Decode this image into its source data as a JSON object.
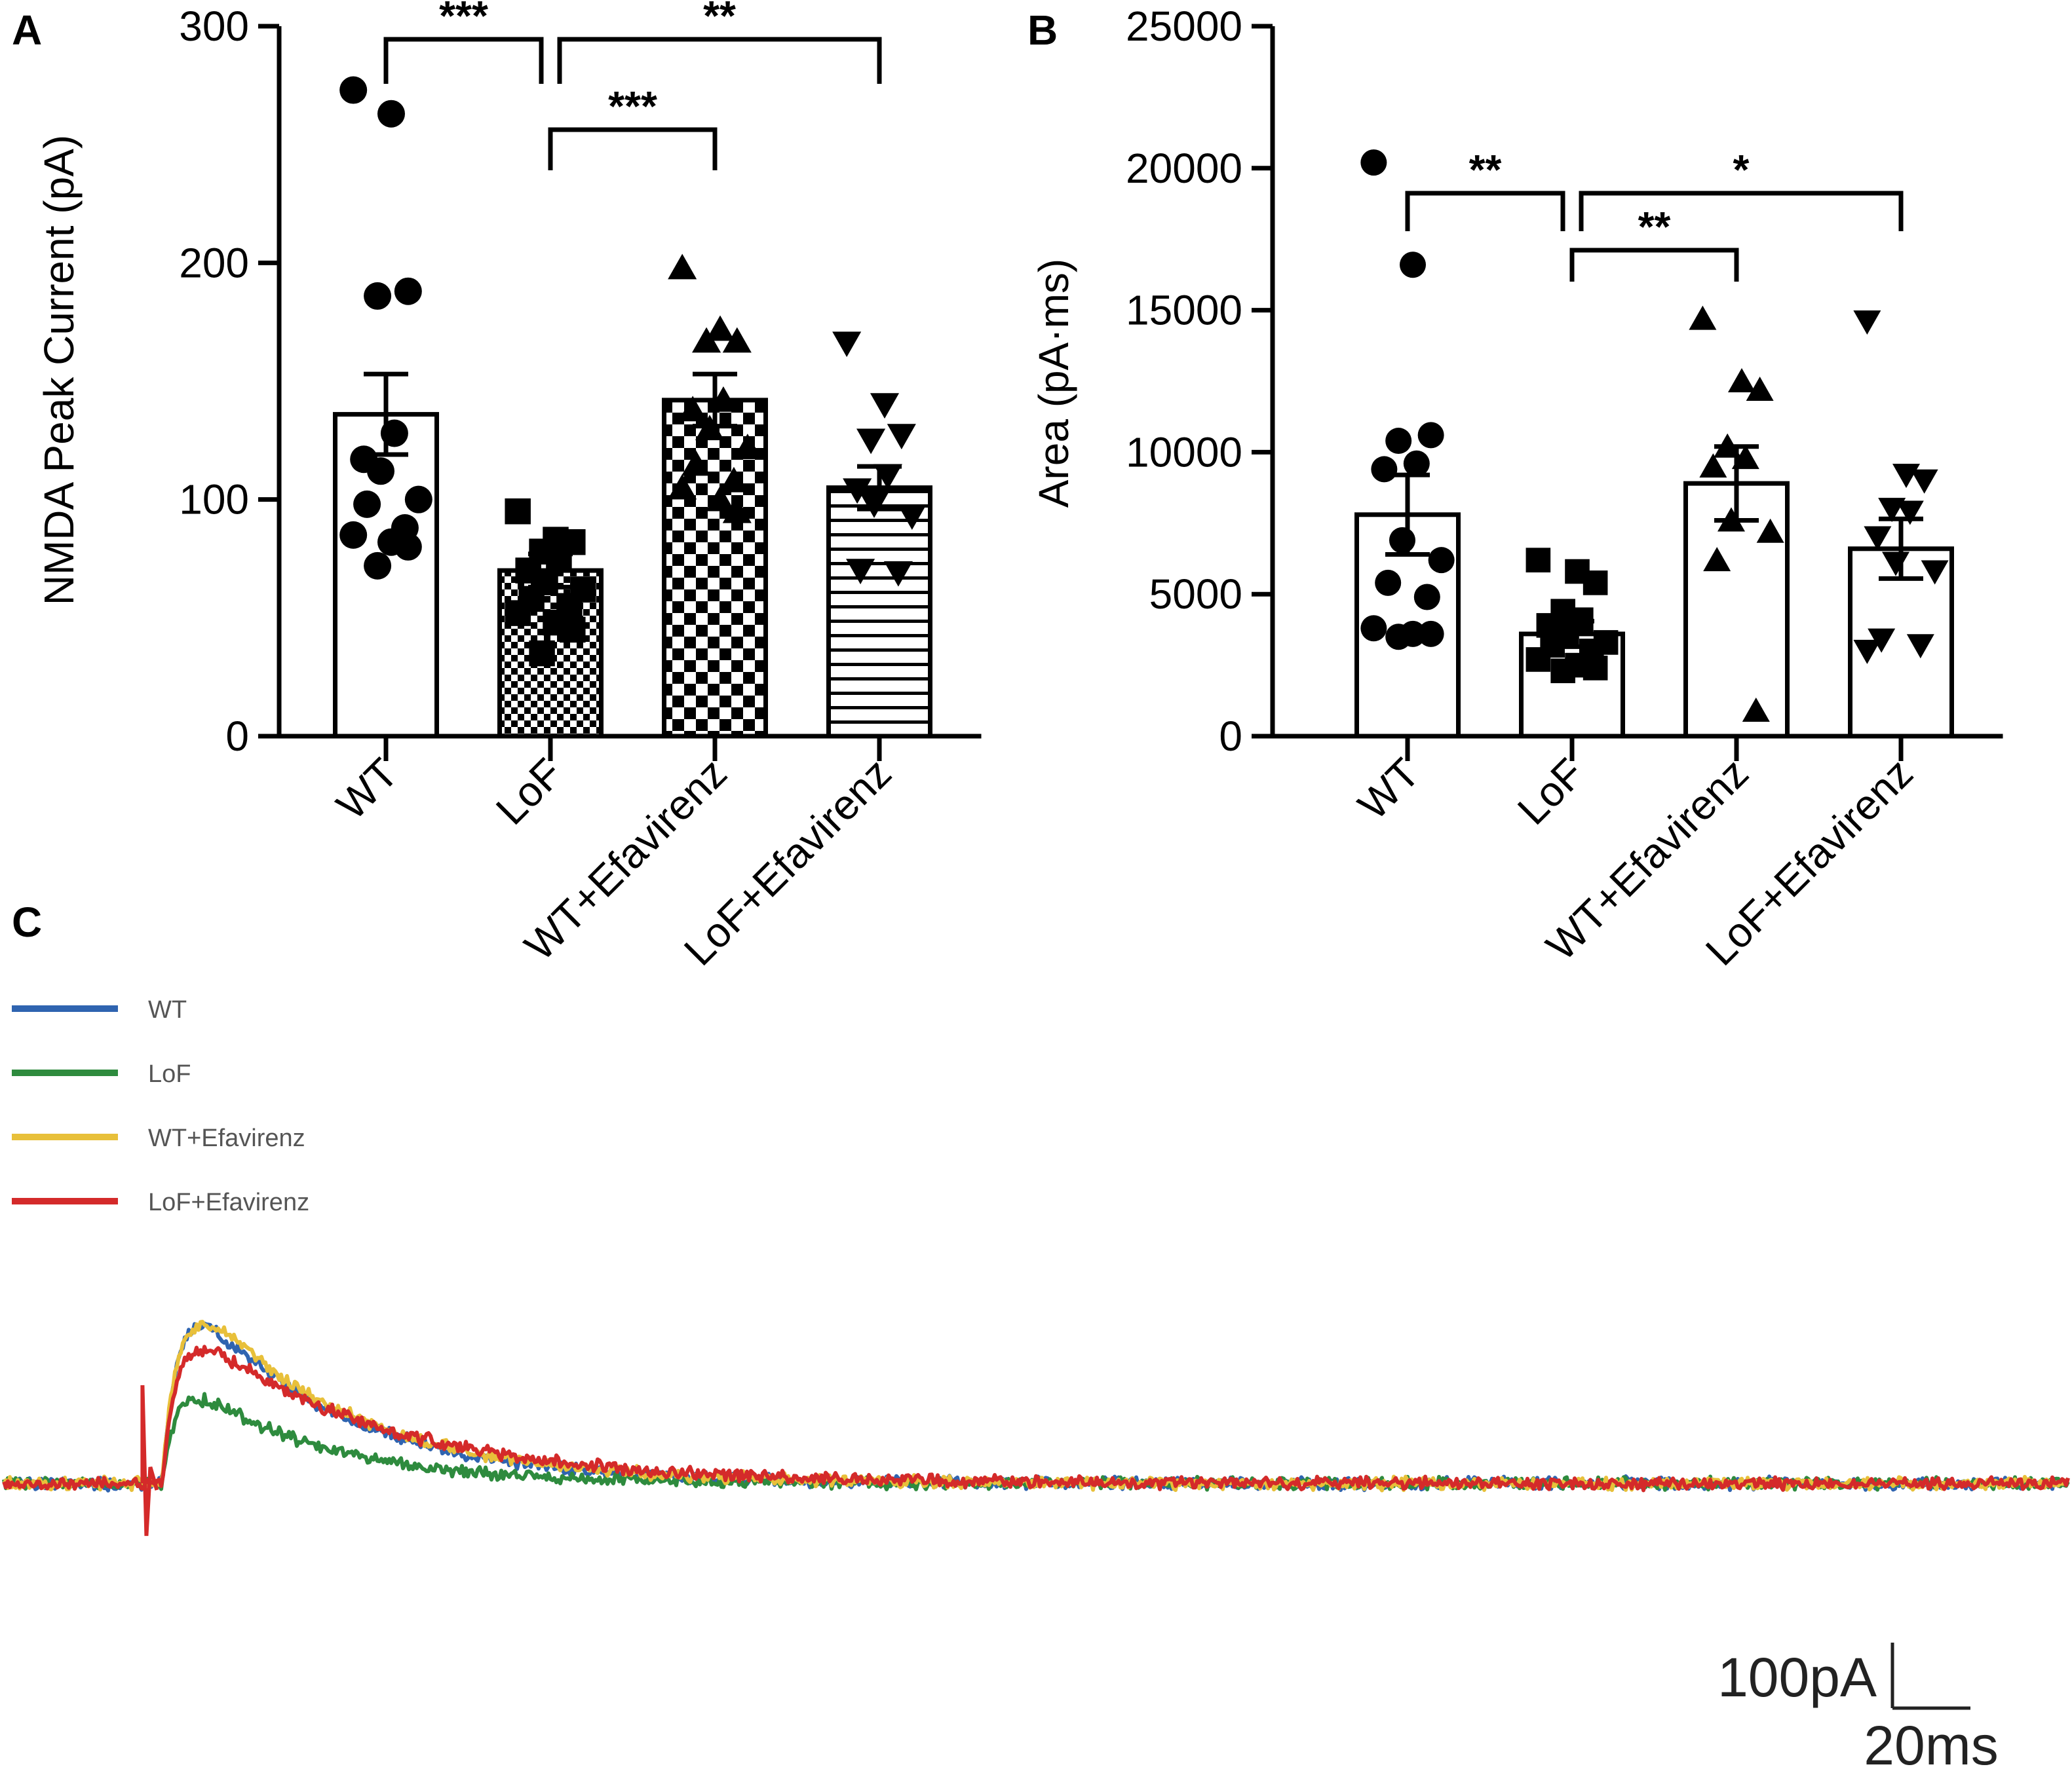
{
  "figure": {
    "panel_labels": [
      "A",
      "B",
      "C"
    ]
  },
  "chart_data": [
    {
      "panel": "A",
      "type": "bar",
      "title": "",
      "xlabel": "",
      "ylabel": "NMDA Peak Current (pA)",
      "categories": [
        "WT",
        "LoF",
        "WT+Efavirenz",
        "LoF+Efavirenz"
      ],
      "values": [
        136,
        70,
        142,
        105
      ],
      "sem": [
        17,
        7,
        11,
        9
      ],
      "fill_patterns": [
        "white",
        "fine-checker",
        "checker",
        "horizontal-stripes"
      ],
      "marker_shapes": [
        "circle",
        "square",
        "triangle-up",
        "triangle-down"
      ],
      "ylim": [
        0,
        300
      ],
      "yticks": [
        0,
        100,
        200,
        300
      ],
      "tick_labels": [
        "0",
        "100",
        "200",
        "300"
      ],
      "points": [
        [
          273,
          263,
          188,
          186,
          128,
          117,
          112,
          100,
          98,
          88,
          85,
          82,
          80,
          72
        ],
        [
          95,
          83,
          82,
          78,
          75,
          70,
          65,
          62,
          58,
          55,
          52,
          48,
          45,
          35
        ],
        [
          198,
          172,
          167,
          167,
          142,
          138,
          130,
          122,
          115,
          108,
          105,
          100,
          95
        ],
        [
          166,
          140,
          127,
          125,
          110,
          104,
          98,
          93,
          70,
          69
        ]
      ],
      "significance": [
        {
          "groups": [
            0,
            1
          ],
          "label": "***"
        },
        {
          "groups": [
            1,
            3
          ],
          "label": "**"
        },
        {
          "groups": [
            1,
            2
          ],
          "label": "***"
        }
      ]
    },
    {
      "panel": "B",
      "type": "bar",
      "title": "",
      "xlabel": "",
      "ylabel": "Area (pA·ms)",
      "categories": [
        "WT",
        "LoF",
        "WT+Efavirenz",
        "LoF+Efavirenz"
      ],
      "values": [
        7800,
        3600,
        8900,
        6600
      ],
      "sem": [
        1400,
        450,
        1300,
        1050
      ],
      "fill_patterns": [
        "white",
        "white",
        "white",
        "white"
      ],
      "marker_shapes": [
        "circle",
        "square",
        "triangle-up",
        "triangle-down"
      ],
      "ylim": [
        0,
        25000
      ],
      "yticks": [
        0,
        5000,
        10000,
        15000,
        20000,
        25000
      ],
      "tick_labels": [
        "0",
        "5000",
        "10000",
        "15000",
        "20000",
        "25000"
      ],
      "points": [
        [
          20200,
          16600,
          10600,
          10400,
          9600,
          9400,
          6900,
          6200,
          5400,
          4900,
          3800,
          3600,
          3600,
          3500
        ],
        [
          6200,
          5800,
          5400,
          4400,
          4100,
          3900,
          3600,
          3300,
          3200,
          3000,
          2700,
          2500,
          2400,
          2300
        ],
        [
          14700,
          12500,
          12200,
          10200,
          9800,
          9500,
          7600,
          7200,
          6200,
          900
        ],
        [
          14600,
          9200,
          9000,
          8000,
          7900,
          7000,
          6100,
          5800,
          3400,
          3200,
          3000
        ]
      ],
      "significance": [
        {
          "groups": [
            0,
            1
          ],
          "label": "**"
        },
        {
          "groups": [
            1,
            3
          ],
          "label": "*"
        },
        {
          "groups": [
            1,
            2
          ],
          "label": "**"
        }
      ]
    },
    {
      "panel": "C",
      "type": "line",
      "title": "",
      "xlabel": "",
      "ylabel": "",
      "x_unit": "ms",
      "y_unit": "pA",
      "scale_bar": {
        "y_label": "100pA",
        "x_label": "20ms",
        "y_value": 100,
        "x_value": 20
      },
      "stimulus_time": 12,
      "series": [
        {
          "name": "WT",
          "color": "#2f64b0",
          "peak": 278,
          "tau": 38,
          "rise": 4.5
        },
        {
          "name": "LoF",
          "color": "#2e8b3e",
          "peak": 150,
          "tau": 34,
          "rise": 4.0
        },
        {
          "name": "WT+Efavirenz",
          "color": "#e8c03a",
          "peak": 280,
          "tau": 40,
          "rise": 4.5
        },
        {
          "name": "LoF+Efavirenz",
          "color": "#d42a2a",
          "peak": 220,
          "tau": 48,
          "rise": 4.0
        }
      ]
    }
  ]
}
